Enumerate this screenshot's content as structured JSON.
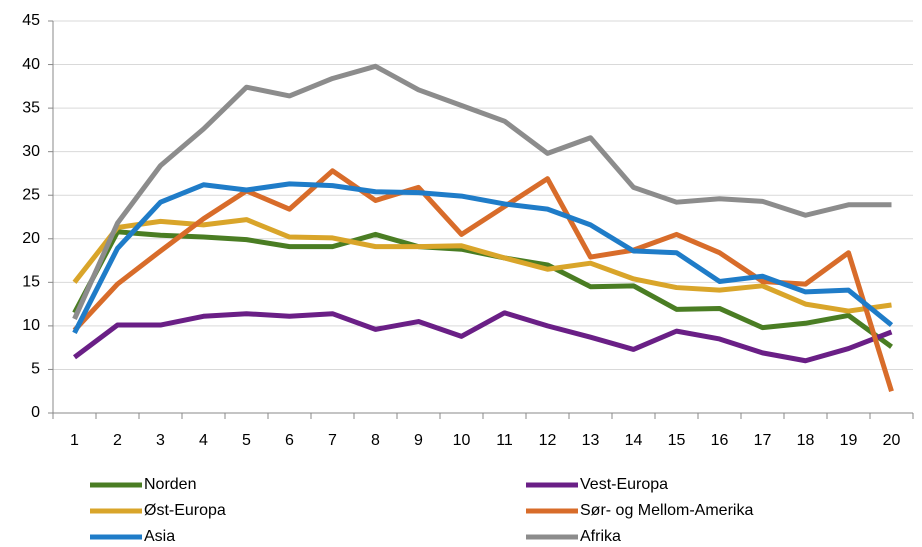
{
  "chart_data": {
    "type": "line",
    "categories": [
      1,
      2,
      3,
      4,
      5,
      6,
      7,
      8,
      9,
      10,
      11,
      12,
      13,
      14,
      15,
      16,
      17,
      18,
      19,
      20
    ],
    "ylim": [
      0,
      45
    ],
    "yticks": [
      0,
      5,
      10,
      15,
      20,
      25,
      30,
      35,
      40,
      45
    ],
    "grid": true,
    "legend": "bottom",
    "series": [
      {
        "name": "Norden",
        "color": "#4a7d23",
        "values": [
          11.5,
          20.8,
          20.4,
          20.2,
          19.9,
          19.1,
          19.1,
          20.5,
          19.1,
          18.8,
          17.8,
          17.0,
          14.5,
          14.6,
          11.9,
          12.0,
          9.8,
          10.3,
          11.2,
          7.6
        ]
      },
      {
        "name": "Vest-Europa",
        "color": "#6a1f86",
        "values": [
          6.4,
          10.1,
          10.1,
          11.1,
          11.4,
          11.1,
          11.4,
          9.6,
          10.5,
          8.8,
          11.5,
          10.0,
          8.7,
          7.3,
          9.4,
          8.5,
          6.9,
          6.0,
          7.4,
          9.3
        ]
      },
      {
        "name": "Øst-Europa",
        "color": "#d9a52a",
        "values": [
          15.0,
          21.3,
          22.0,
          21.6,
          22.2,
          20.2,
          20.1,
          19.1,
          19.1,
          19.2,
          17.8,
          16.5,
          17.2,
          15.4,
          14.4,
          14.1,
          14.6,
          12.5,
          11.7,
          12.4
        ]
      },
      {
        "name": "Sør- og Mellom-Amerika",
        "color": "#d86c2a",
        "values": [
          9.5,
          14.8,
          18.6,
          22.3,
          25.5,
          23.4,
          27.8,
          24.4,
          25.9,
          20.5,
          23.7,
          26.9,
          17.9,
          18.7,
          20.5,
          18.4,
          15.1,
          14.8,
          18.4,
          2.5
        ]
      },
      {
        "name": "Asia",
        "color": "#1f7cc8",
        "values": [
          9.2,
          18.9,
          24.2,
          26.2,
          25.6,
          26.3,
          26.1,
          25.4,
          25.3,
          24.9,
          24.0,
          23.4,
          21.6,
          18.6,
          18.4,
          15.1,
          15.7,
          13.9,
          14.1,
          10.1
        ]
      },
      {
        "name": "Afrika",
        "color": "#8c8c8c",
        "values": [
          10.8,
          21.8,
          28.4,
          32.6,
          37.4,
          36.4,
          38.4,
          39.8,
          37.1,
          35.3,
          33.5,
          29.8,
          31.6,
          25.9,
          24.2,
          24.6,
          24.3,
          22.7,
          23.9,
          23.9
        ]
      }
    ]
  }
}
